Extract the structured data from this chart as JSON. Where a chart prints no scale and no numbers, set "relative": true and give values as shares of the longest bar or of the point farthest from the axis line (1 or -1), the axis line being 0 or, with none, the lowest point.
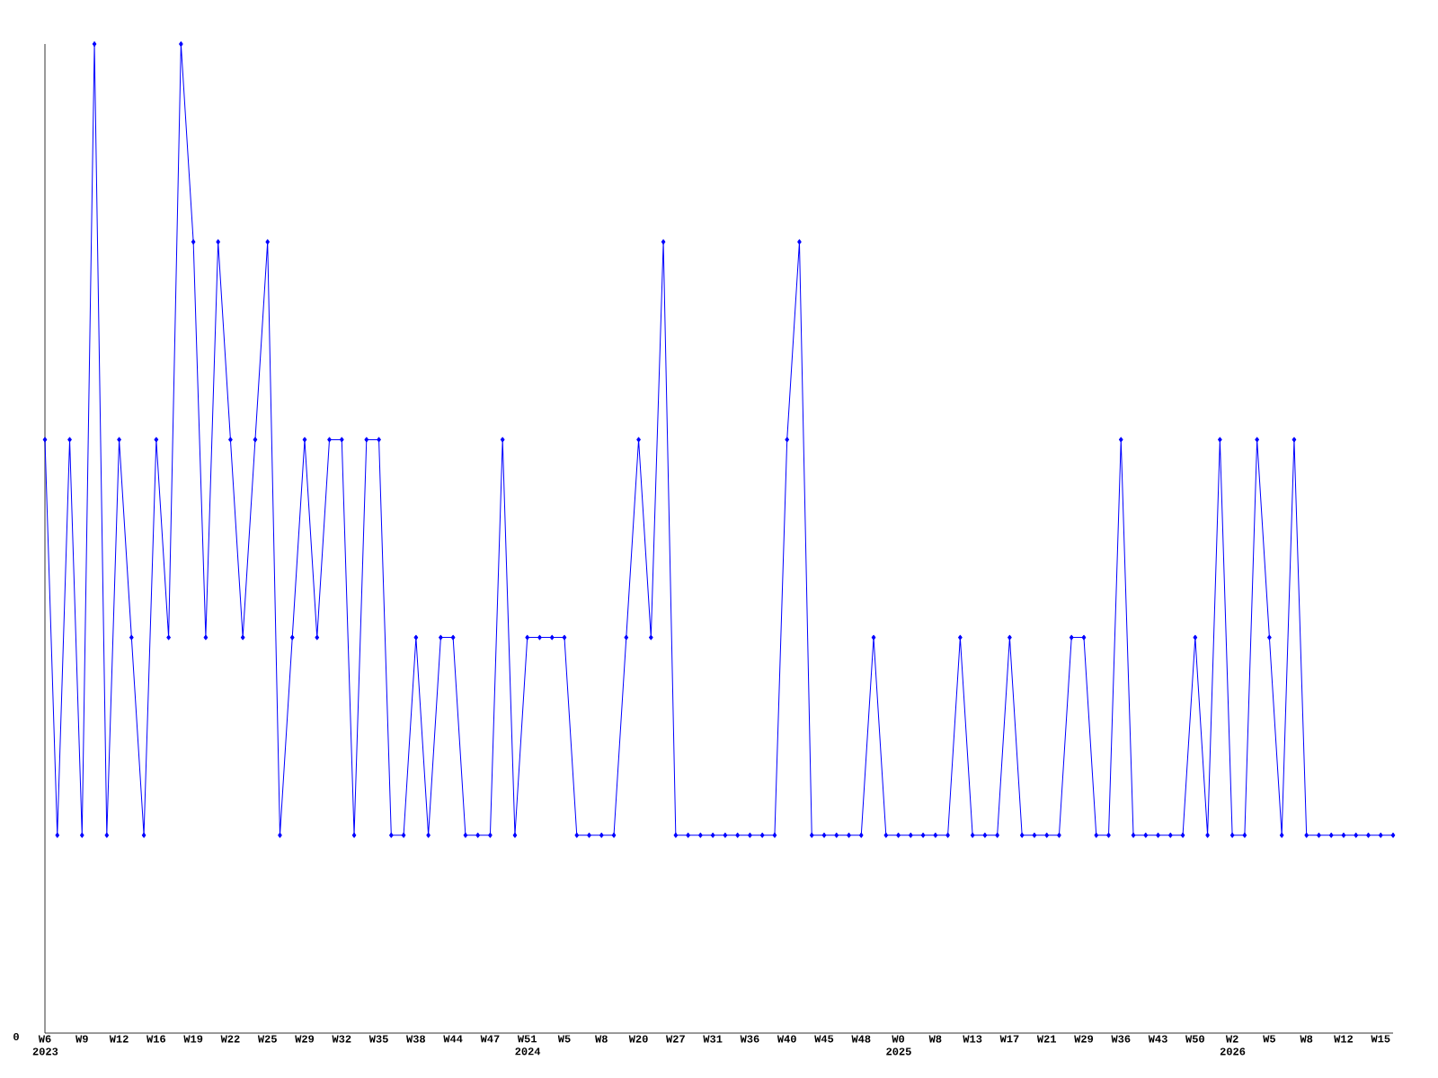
{
  "chart_data": {
    "type": "line",
    "relative": true,
    "marker": "diamond",
    "line_style": "solid",
    "categories": [
      "W6 2023",
      null,
      null,
      "W9",
      null,
      null,
      "W12",
      null,
      null,
      "W16",
      null,
      null,
      "W19",
      null,
      null,
      "W22",
      null,
      null,
      "W25",
      null,
      null,
      "W29",
      null,
      null,
      "W32",
      null,
      null,
      "W35",
      null,
      null,
      "W38",
      null,
      null,
      "W44",
      null,
      null,
      "W47",
      null,
      null,
      "W51 2024",
      null,
      null,
      "W5",
      null,
      null,
      "W8",
      null,
      null,
      "W20",
      null,
      null,
      "W27",
      null,
      null,
      "W31",
      null,
      null,
      "W36",
      null,
      null,
      "W40",
      null,
      null,
      "W45",
      null,
      null,
      "W48",
      null,
      null,
      "W0 2025",
      null,
      null,
      "W8",
      null,
      null,
      "W13",
      null,
      null,
      "W17",
      null,
      null,
      "W21",
      null,
      null,
      "W29",
      null,
      null,
      "W36",
      null,
      null,
      "W43",
      null,
      null,
      "W50",
      null,
      null,
      "W2 2026",
      null,
      null,
      "W5",
      null,
      null,
      "W8",
      null,
      null,
      "W12",
      null,
      null,
      "W15",
      null
    ],
    "annotations": [
      "0"
    ],
    "series": [
      {
        "color": "#0000ff",
        "values": [
          0.6,
          0.2,
          0.6,
          0.2,
          1,
          0.2,
          0.6,
          0.4,
          0.2,
          0.6,
          0.4,
          1,
          0.8,
          0.4,
          0.8,
          0.6,
          0.4,
          0.6,
          0.8,
          0.2,
          0.4,
          0.6,
          0.4,
          0.6,
          0.6,
          0.2,
          0.6,
          0.6,
          0.2,
          0.2,
          0.4,
          0.2,
          0.4,
          0.4,
          0.2,
          0.2,
          0.2,
          0.6,
          0.2,
          0.4,
          0.4,
          0.4,
          0.4,
          0.2,
          0.2,
          0.2,
          0.2,
          0.4,
          0.6,
          0.4,
          0.8,
          0.2,
          0.2,
          0.2,
          0.2,
          0.2,
          0.2,
          0.2,
          0.2,
          0.2,
          0.6,
          0.8,
          0.2,
          0.2,
          0.2,
          0.2,
          0.2,
          0.4,
          0.2,
          0.2,
          0.2,
          0.2,
          0.2,
          0.2,
          0.4,
          0.2,
          0.2,
          0.2,
          0.4,
          0.2,
          0.2,
          0.2,
          0.2,
          0.4,
          0.4,
          0.2,
          0.2,
          0.6,
          0.2,
          0.2,
          0.2,
          0.2,
          0.2,
          0.4,
          0.2,
          0.6,
          0.2,
          0.2,
          0.6,
          0.4,
          0.2,
          0.6,
          0.2,
          0.2,
          0.2,
          0.2,
          0.2,
          0.2,
          0.2,
          0.2
        ]
      }
    ]
  }
}
